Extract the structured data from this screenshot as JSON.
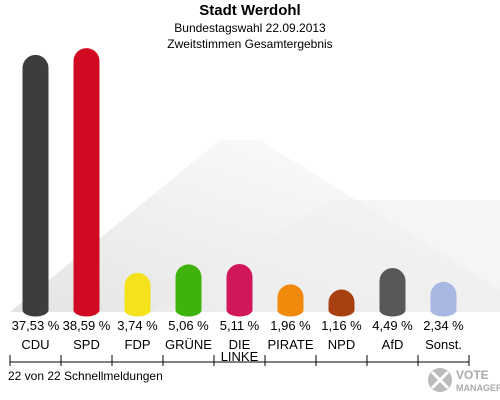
{
  "chart_data": {
    "type": "bar",
    "title": "Stadt Werdohl",
    "subtitle": [
      "Bundestagswahl 22.09.2013",
      "Zweitstimmen Gesamtergebnis"
    ],
    "categories": [
      "CDU",
      "SPD",
      "FDP",
      "GRÜNE",
      "DIE LINKE",
      "PIRATE",
      "NPD",
      "AfD",
      "Sonst."
    ],
    "values": [
      37.53,
      38.59,
      3.74,
      5.06,
      5.11,
      1.96,
      1.16,
      4.49,
      2.34
    ],
    "value_labels": [
      "37,53 %",
      "38,59 %",
      "3,74 %",
      "5,06 %",
      "5,11 %",
      "1,96 %",
      "1,16 %",
      "4,49 %",
      "2,34 %"
    ],
    "colors": [
      "#3d3d3d",
      "#d10a22",
      "#f3e21c",
      "#40b20e",
      "#d2165a",
      "#f08a0c",
      "#a9400f",
      "#585858",
      "#a8b8e2"
    ],
    "footer": "22 von 22 Schnellmeldungen",
    "logo": [
      "VOTE",
      "MANAGER"
    ]
  }
}
